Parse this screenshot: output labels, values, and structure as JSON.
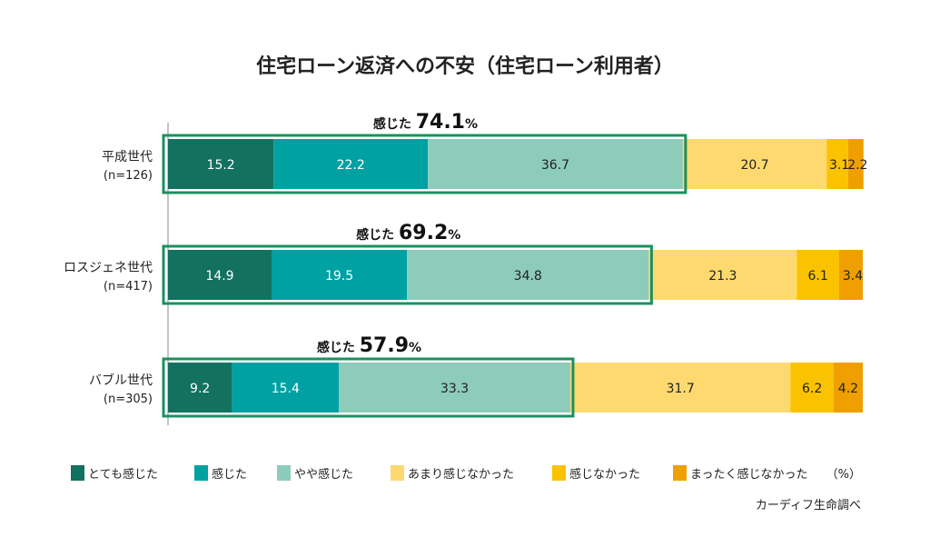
{
  "chart_data": {
    "type": "bar",
    "orientation": "horizontal-stacked-100",
    "title": "住宅ローン返済への不安（住宅ローン利用者）",
    "unit_label": "（%）",
    "source": "カーディフ生命調べ",
    "categories": [
      {
        "name": "平成世代",
        "n": "(n=126)"
      },
      {
        "name": "ロスジェネ世代",
        "n": "(n=417)"
      },
      {
        "name": "バブル世代",
        "n": "(n=305)"
      }
    ],
    "series": [
      {
        "name": "とても感じた",
        "color": "#12715f",
        "text_color": "#ffffff",
        "values": [
          15.2,
          14.9,
          9.2
        ]
      },
      {
        "name": "感じた",
        "color": "#00a1a2",
        "text_color": "#ffffff",
        "values": [
          22.2,
          19.5,
          15.4
        ]
      },
      {
        "name": "やや感じた",
        "color": "#8dcbbb",
        "text_color": "#222222",
        "values": [
          36.7,
          34.8,
          33.3
        ]
      },
      {
        "name": "あまり感じなかった",
        "color": "#fdd96f",
        "text_color": "#222222",
        "values": [
          20.7,
          21.3,
          31.7
        ]
      },
      {
        "name": "感じなかった",
        "color": "#fbc200",
        "text_color": "#222222",
        "values": [
          3.1,
          6.1,
          6.2
        ]
      },
      {
        "name": "まったく感じなかった",
        "color": "#ef9f00",
        "text_color": "#222222",
        "values": [
          2.2,
          3.4,
          4.2
        ]
      }
    ],
    "felt_totals": {
      "prefix": "感じた",
      "values": [
        "74.1",
        "69.2",
        "57.9"
      ],
      "suffix": "%"
    },
    "highlight_color": "#1a9160",
    "xlim": [
      0,
      100
    ],
    "legend_position": "bottom"
  }
}
